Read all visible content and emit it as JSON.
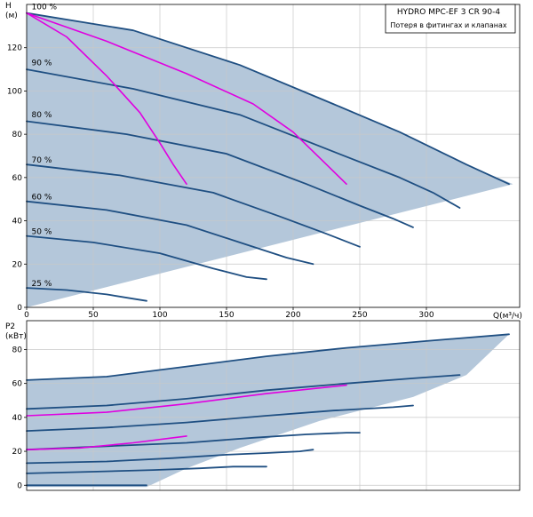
{
  "legend": {
    "title": "HYDRO MPC-EF 3 CR 90-4",
    "subtitle": "Потеря в фитингах и клапанах"
  },
  "colors": {
    "plot_bg": "#ffffff",
    "envelope_fill": "#b4c7da",
    "curve": "#1f4f82",
    "loss_curve": "#e000e0",
    "grid": "#c8c8c8",
    "frame": "#000000"
  },
  "chart_data": [
    {
      "type": "line",
      "xlabel": "Q(м³/ч)",
      "ylabel": "H (м)",
      "ylabel_lines": [
        "H",
        "(м)"
      ],
      "xlim": [
        0,
        370
      ],
      "ylim": [
        0,
        140
      ],
      "x_ticks": [
        0,
        50,
        100,
        150,
        200,
        250,
        300
      ],
      "y_ticks": [
        0,
        20,
        40,
        60,
        80,
        100,
        120
      ],
      "grid": true,
      "envelope": [
        [
          0,
          136
        ],
        [
          80,
          128
        ],
        [
          160,
          112
        ],
        [
          230,
          94
        ],
        [
          280,
          81
        ],
        [
          330,
          66
        ],
        [
          365,
          57
        ],
        [
          0,
          0
        ],
        [
          0,
          0
        ]
      ],
      "envelope_note": "approximate shaded operating area",
      "speed_labels": [
        {
          "text": "100 %",
          "x": 1,
          "y": 137
        },
        {
          "text": "90 %",
          "x": 1,
          "y": 111
        },
        {
          "text": "80 %",
          "x": 1,
          "y": 87
        },
        {
          "text": "70 %",
          "x": 1,
          "y": 66
        },
        {
          "text": "60 %",
          "x": 1,
          "y": 49
        },
        {
          "text": "50 %",
          "x": 1,
          "y": 33
        },
        {
          "text": "25 %",
          "x": 1,
          "y": 9
        }
      ],
      "series": [
        {
          "kind": "pump",
          "x": [
            0,
            80,
            160,
            230,
            280,
            330,
            362
          ],
          "y": [
            136,
            128,
            112,
            94,
            81,
            66,
            57
          ]
        },
        {
          "kind": "pump",
          "x": [
            0,
            80,
            160,
            230,
            280,
            305,
            325
          ],
          "y": [
            110,
            101,
            89,
            72,
            60,
            53,
            46
          ]
        },
        {
          "kind": "pump",
          "x": [
            0,
            75,
            150,
            210,
            250,
            275,
            290
          ],
          "y": [
            86,
            80,
            71,
            57,
            47,
            41,
            37
          ]
        },
        {
          "kind": "pump",
          "x": [
            0,
            70,
            140,
            190,
            225,
            250
          ],
          "y": [
            66,
            61,
            53,
            42,
            34,
            28
          ]
        },
        {
          "kind": "pump",
          "x": [
            0,
            60,
            120,
            165,
            195,
            215
          ],
          "y": [
            49,
            45,
            38,
            29,
            23,
            20
          ]
        },
        {
          "kind": "pump",
          "x": [
            0,
            50,
            100,
            140,
            165,
            180
          ],
          "y": [
            33,
            30,
            25,
            18,
            14,
            13
          ]
        },
        {
          "kind": "pump",
          "x": [
            0,
            30,
            60,
            80,
            90
          ],
          "y": [
            9,
            8,
            6,
            4,
            3
          ]
        },
        {
          "kind": "loss",
          "x": [
            0,
            30,
            60,
            85,
            100,
            110,
            120
          ],
          "y": [
            136,
            125,
            107,
            90,
            76,
            66,
            57
          ]
        },
        {
          "kind": "loss",
          "x": [
            0,
            60,
            120,
            170,
            200,
            225,
            240
          ],
          "y": [
            136,
            123,
            108,
            94,
            81,
            66,
            57
          ]
        }
      ]
    },
    {
      "type": "line",
      "xlabel": "",
      "ylabel": "P2 (кВт)",
      "ylabel_lines": [
        "P2",
        "(кВт)"
      ],
      "xlim": [
        0,
        370
      ],
      "ylim": [
        -3,
        97
      ],
      "x_ticks": [
        0,
        50,
        100,
        150,
        200,
        250,
        300
      ],
      "y_ticks": [
        0,
        20,
        40,
        60,
        80
      ],
      "grid": true,
      "envelope": [
        [
          0,
          62
        ],
        [
          60,
          64
        ],
        [
          120,
          70
        ],
        [
          180,
          76
        ],
        [
          240,
          81
        ],
        [
          300,
          85
        ],
        [
          362,
          89
        ],
        [
          330,
          65
        ],
        [
          290,
          52
        ],
        [
          220,
          38
        ],
        [
          160,
          22
        ],
        [
          120,
          10
        ],
        [
          90,
          -1
        ],
        [
          0,
          -1
        ]
      ],
      "series": [
        {
          "kind": "pump",
          "x": [
            0,
            60,
            120,
            180,
            240,
            300,
            362
          ],
          "y": [
            62,
            64,
            70,
            76,
            81,
            85,
            89
          ]
        },
        {
          "kind": "pump",
          "x": [
            0,
            60,
            120,
            180,
            240,
            290,
            325
          ],
          "y": [
            45,
            47,
            51,
            56,
            60,
            63,
            65
          ]
        },
        {
          "kind": "pump",
          "x": [
            0,
            60,
            120,
            180,
            230,
            275,
            290
          ],
          "y": [
            32,
            34,
            37,
            41,
            44,
            46,
            47
          ]
        },
        {
          "kind": "pump",
          "x": [
            0,
            60,
            120,
            170,
            210,
            240,
            250
          ],
          "y": [
            21,
            23,
            25,
            28,
            30,
            31,
            31
          ]
        },
        {
          "kind": "pump",
          "x": [
            0,
            60,
            110,
            150,
            180,
            205,
            215
          ],
          "y": [
            13,
            14,
            16,
            18,
            19,
            20,
            21
          ]
        },
        {
          "kind": "pump",
          "x": [
            0,
            50,
            95,
            130,
            155,
            175,
            180
          ],
          "y": [
            7,
            8,
            9,
            10,
            11,
            11,
            11
          ]
        },
        {
          "kind": "pump",
          "x": [
            0,
            40,
            70,
            90
          ],
          "y": [
            0,
            0,
            0,
            0
          ]
        },
        {
          "kind": "loss",
          "x": [
            0,
            60,
            120,
            180,
            240
          ],
          "y": [
            41,
            43,
            48,
            54,
            59
          ]
        },
        {
          "kind": "loss",
          "x": [
            0,
            40,
            80,
            110,
            120
          ],
          "y": [
            21,
            22,
            25,
            28,
            29
          ]
        }
      ]
    }
  ]
}
